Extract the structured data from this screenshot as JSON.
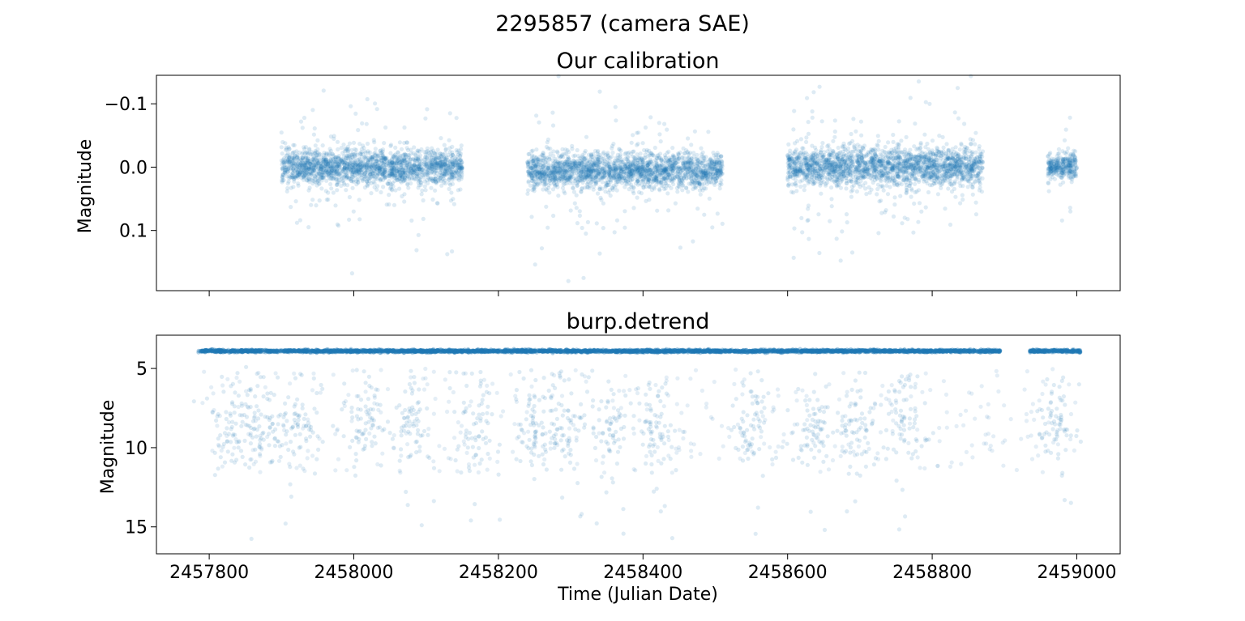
{
  "figure_title": "2295857 (camera SAE)",
  "colors": {
    "series": "#1f77b4",
    "axis": "#000000"
  },
  "chart_data": [
    {
      "type": "scatter",
      "title": "Our calibration",
      "xlabel": "",
      "ylabel": "Magnitude",
      "xlim": [
        2457727,
        2459060
      ],
      "ylim": [
        0.195,
        -0.145
      ],
      "y_inverted": true,
      "grid": false,
      "xticks": [
        2457800,
        2458000,
        2458200,
        2458400,
        2458600,
        2458800,
        2459000
      ],
      "xtick_labels": [
        "",
        "",
        "",
        "",
        "",
        "",
        ""
      ],
      "yticks": [
        -0.1,
        0.0,
        0.1
      ],
      "ytick_labels": [
        "−0.1",
        "0.0",
        "0.1"
      ],
      "series": [
        {
          "marker_alpha": 0.15,
          "segments": [
            {
              "x": [
                2457900,
                2458150
              ],
              "center": 0.0,
              "spread": 0.025
            },
            {
              "x": [
                2458240,
                2458510
              ],
              "center": 0.005,
              "spread": 0.025
            },
            {
              "x": [
                2458600,
                2458870
              ],
              "center": 0.0,
              "spread": 0.028
            },
            {
              "x": [
                2458960,
                2459000
              ],
              "center": 0.0,
              "spread": 0.018
            }
          ]
        }
      ]
    },
    {
      "type": "scatter",
      "title": "burp.detrend",
      "xlabel": "Time (Julian Date)",
      "ylabel": "Magnitude",
      "xlim": [
        2457727,
        2459060
      ],
      "ylim": [
        16.7,
        2.9
      ],
      "y_inverted": true,
      "grid": false,
      "xticks": [
        2457800,
        2458000,
        2458200,
        2458400,
        2458600,
        2458800,
        2459000
      ],
      "xtick_labels": [
        "2457800",
        "2458000",
        "2458200",
        "2458400",
        "2458600",
        "2458800",
        "2459000"
      ],
      "yticks": [
        5,
        10,
        15
      ],
      "ytick_labels": [
        "5",
        "10",
        "15"
      ],
      "series": [
        {
          "marker_alpha": 0.15,
          "baseline": 3.9,
          "baseline_ranges": [
            [
              2457785,
              2458895
            ],
            [
              2458935,
              2459005
            ]
          ],
          "outlier_range": [
            5,
            16
          ],
          "outlier_clusters": [
            2457830,
            2457875,
            2457925,
            2458015,
            2458080,
            2458170,
            2458250,
            2458290,
            2458350,
            2458420,
            2458550,
            2458640,
            2458700,
            2458760,
            2458970
          ]
        }
      ]
    }
  ]
}
